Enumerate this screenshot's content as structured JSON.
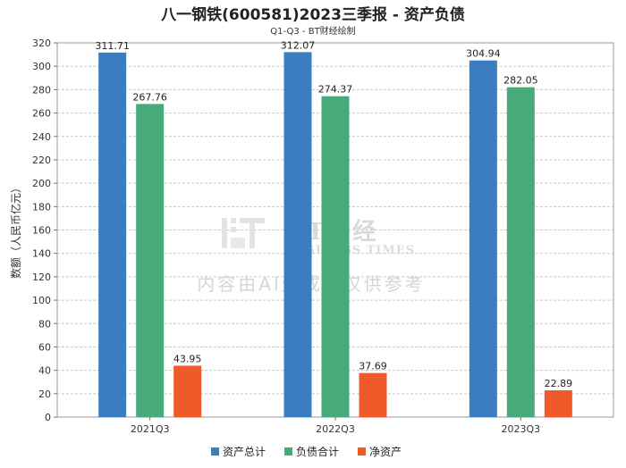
{
  "chart_data": {
    "type": "bar",
    "title": "八一钢铁(600581)2023三季报 - 资产负债",
    "subtitle": "Q1-Q3 - BT财经绘制",
    "ylabel": "数额（人民币亿元）",
    "xlabel": "",
    "ylim": [
      0,
      320
    ],
    "yticks": [
      0,
      20,
      40,
      60,
      80,
      100,
      120,
      140,
      160,
      180,
      200,
      220,
      240,
      260,
      280,
      300,
      320
    ],
    "grid": true,
    "legend_position": "bottom",
    "categories": [
      "2021Q3",
      "2022Q3",
      "2023Q3"
    ],
    "series": [
      {
        "name": "资产总计",
        "color": "#3a7ebf",
        "values": [
          311.71,
          312.07,
          304.94
        ]
      },
      {
        "name": "负债合计",
        "color": "#47aa78",
        "values": [
          267.76,
          274.37,
          282.05
        ]
      },
      {
        "name": "净资产",
        "color": "#ef5a2a",
        "values": [
          43.95,
          37.69,
          22.89
        ]
      }
    ]
  },
  "watermark": {
    "logo": "BT财经",
    "logo_sub": "BUSINESS TIMES",
    "note": "内容由AI生成，仅供参考"
  }
}
